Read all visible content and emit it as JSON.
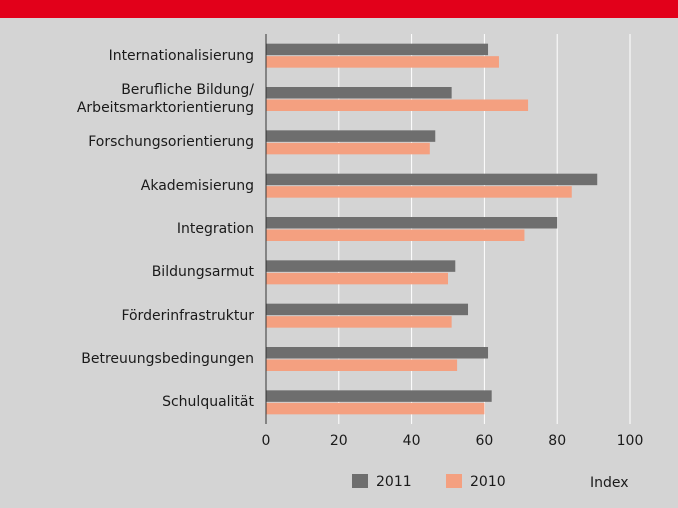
{
  "chart_data": {
    "type": "barh",
    "categories": [
      "Internationalisierung",
      "Berufliche Bildung/\nArbeitsmarktorientierung",
      "Forschungsorientierung",
      "Akademisierung",
      "Integration",
      "Bildungsarmut",
      "Förderinfrastruktur",
      "Betreuungsbedingungen",
      "Schulqualität"
    ],
    "series": [
      {
        "name": "2011",
        "color": "#6e6e6e",
        "values": [
          61,
          51,
          46.5,
          91,
          80,
          52,
          55.5,
          61,
          62
        ]
      },
      {
        "name": "2010",
        "color": "#f4a080",
        "values": [
          64,
          72,
          45,
          84,
          71,
          50,
          51,
          52.5,
          60
        ]
      }
    ],
    "xlabel": "Index",
    "xlim": [
      0,
      100
    ],
    "xticks": [
      0,
      20,
      40,
      60,
      80,
      100
    ],
    "grid": true,
    "legend": "bottom"
  }
}
